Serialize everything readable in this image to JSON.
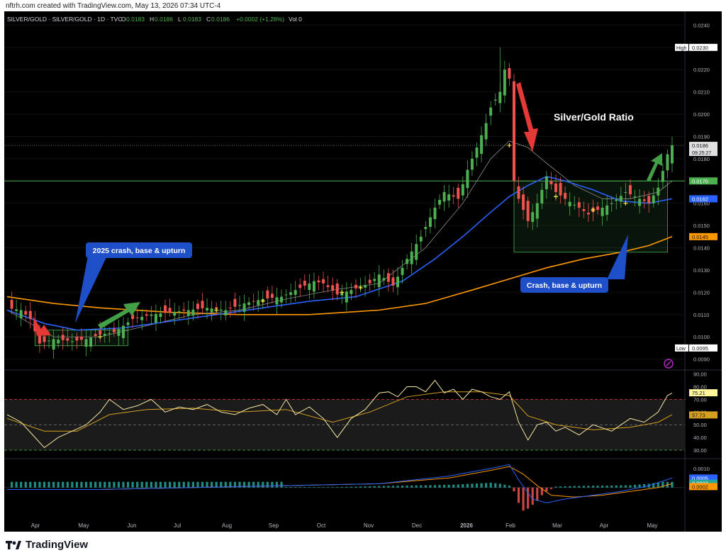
{
  "header": {
    "credit": "nftrh.com created with TradingView.com, May 13, 2026 07:34 UTC-4",
    "symbol": "SILVER/GOLD · SILVER/GOLD · 1D · TVC",
    "ohlc": [
      {
        "label": "O",
        "value": "0.0183"
      },
      {
        "label": "H",
        "value": "0.0186"
      },
      {
        "label": "L",
        "value": "0.0183"
      },
      {
        "label": "C",
        "value": "0.0186"
      }
    ],
    "change": "+0.0002 (+1.28%)",
    "volume": "Vol 0"
  },
  "footer": {
    "brand": "TradingView"
  },
  "colors": {
    "background": "#000000",
    "candle_up": "#4caf50",
    "candle_down": "#ef5350",
    "ma_blue": "#2962ff",
    "ma_orange": "#ff9800",
    "ma_thin": "#9e9e9e",
    "line_green": "#4caf50",
    "rsi": "#f5e6a0",
    "rsi_signal": "#d4a020",
    "arrow_green": "#43a047",
    "arrow_red": "#e53935",
    "callout": "#1e4fc8"
  },
  "chart_data": [
    {
      "type": "line",
      "name": "price",
      "title": "Silver/Gold Ratio",
      "x_labels": [
        "Apr",
        "May",
        "Jun",
        "Jul",
        "Aug",
        "Sep",
        "Oct",
        "Nov",
        "Dec",
        "2026",
        "Feb",
        "Mar",
        "Apr",
        "May"
      ],
      "y_ticks": [
        "0.0090",
        "0.0100",
        "0.0110",
        "0.0120",
        "0.0130",
        "0.0140",
        "0.0150",
        "0.0160",
        "0.0170",
        "0.0180",
        "0.0190",
        "0.0200",
        "0.0210",
        "0.0220",
        "0.0230",
        "0.0240"
      ],
      "ylim": [
        0.0087,
        0.0243
      ],
      "series": [
        {
          "name": "SILVER/GOLD",
          "points": [
            [
              0,
              0.0113
            ],
            [
              3,
              0.0112
            ],
            [
              5,
              0.0108
            ],
            [
              7,
              0.0097
            ],
            [
              10,
              0.0099
            ],
            [
              14,
              0.0098
            ],
            [
              17,
              0.0099
            ],
            [
              20,
              0.0101
            ],
            [
              23,
              0.0102
            ],
            [
              27,
              0.0108
            ],
            [
              31,
              0.011
            ],
            [
              35,
              0.0111
            ],
            [
              39,
              0.0112
            ],
            [
              43,
              0.0113
            ],
            [
              47,
              0.0112
            ],
            [
              51,
              0.0115
            ],
            [
              55,
              0.0117
            ],
            [
              59,
              0.0118
            ],
            [
              63,
              0.0122
            ],
            [
              66,
              0.0125
            ],
            [
              68,
              0.0124
            ],
            [
              71,
              0.0119
            ],
            [
              74,
              0.0121
            ],
            [
              78,
              0.0124
            ],
            [
              80,
              0.0128
            ],
            [
              83,
              0.0123
            ],
            [
              86,
              0.0135
            ],
            [
              89,
              0.0145
            ],
            [
              92,
              0.0158
            ],
            [
              94,
              0.0165
            ],
            [
              97,
              0.0162
            ],
            [
              99,
              0.0175
            ],
            [
              101,
              0.0185
            ],
            [
              103,
              0.0196
            ],
            [
              104,
              0.0203
            ],
            [
              106,
              0.021
            ],
            [
              107,
              0.022
            ],
            [
              108,
              0.0216
            ],
            [
              109,
              0.017
            ],
            [
              110,
              0.0162
            ],
            [
              112,
              0.0152
            ],
            [
              114,
              0.016
            ],
            [
              116,
              0.0172
            ],
            [
              118,
              0.0165
            ],
            [
              120,
              0.0162
            ],
            [
              123,
              0.0158
            ],
            [
              125,
              0.0155
            ],
            [
              128,
              0.0158
            ],
            [
              130,
              0.016
            ],
            [
              133,
              0.0165
            ],
            [
              136,
              0.0162
            ],
            [
              138,
              0.016
            ],
            [
              140,
              0.0167
            ],
            [
              142,
              0.0182
            ],
            [
              143,
              0.0186
            ]
          ]
        },
        {
          "name": "MA blue",
          "points": [
            [
              0,
              0.0112
            ],
            [
              8,
              0.0106
            ],
            [
              15,
              0.0103
            ],
            [
              25,
              0.0104
            ],
            [
              35,
              0.0107
            ],
            [
              45,
              0.011
            ],
            [
              55,
              0.0113
            ],
            [
              65,
              0.0116
            ],
            [
              75,
              0.0118
            ],
            [
              85,
              0.0125
            ],
            [
              92,
              0.0135
            ],
            [
              98,
              0.0145
            ],
            [
              104,
              0.0156
            ],
            [
              108,
              0.0163
            ],
            [
              112,
              0.0168
            ],
            [
              116,
              0.0172
            ],
            [
              120,
              0.017
            ],
            [
              126,
              0.0166
            ],
            [
              132,
              0.0161
            ],
            [
              138,
              0.016
            ],
            [
              143,
              0.0162
            ]
          ]
        },
        {
          "name": "MA orange",
          "points": [
            [
              0,
              0.0118
            ],
            [
              10,
              0.0115
            ],
            [
              20,
              0.0113
            ],
            [
              35,
              0.0111
            ],
            [
              50,
              0.011
            ],
            [
              65,
              0.011
            ],
            [
              80,
              0.0112
            ],
            [
              90,
              0.0115
            ],
            [
              100,
              0.0121
            ],
            [
              108,
              0.0126
            ],
            [
              116,
              0.0131
            ],
            [
              124,
              0.0135
            ],
            [
              132,
              0.0138
            ],
            [
              138,
              0.0141
            ],
            [
              143,
              0.0145
            ]
          ]
        },
        {
          "name": "MA thin",
          "points": [
            [
              0,
              0.0112
            ],
            [
              10,
              0.01
            ],
            [
              20,
              0.01
            ],
            [
              30,
              0.0105
            ],
            [
              40,
              0.011
            ],
            [
              50,
              0.0112
            ],
            [
              60,
              0.0117
            ],
            [
              70,
              0.0121
            ],
            [
              80,
              0.0124
            ],
            [
              90,
              0.014
            ],
            [
              98,
              0.016
            ],
            [
              104,
              0.018
            ],
            [
              108,
              0.0188
            ],
            [
              112,
              0.0185
            ],
            [
              116,
              0.0178
            ],
            [
              122,
              0.0168
            ],
            [
              128,
              0.0162
            ],
            [
              134,
              0.0162
            ],
            [
              140,
              0.0165
            ],
            [
              143,
              0.017
            ]
          ]
        }
      ],
      "horizontal_line": 0.017,
      "price_labels": [
        {
          "label": "High",
          "value": "0.0230"
        },
        {
          "label": "",
          "value": "0.0186",
          "sub": "09:25:27"
        },
        {
          "label": "",
          "value": "0.0170"
        },
        {
          "label": "",
          "value": "0.0162"
        },
        {
          "label": "",
          "value": "0.0145"
        },
        {
          "label": "Low",
          "value": "0.0095"
        }
      ],
      "annotations": [
        {
          "text": "2025 crash, base & upturn"
        },
        {
          "text": "Crash, base & upturn"
        }
      ]
    },
    {
      "type": "line",
      "name": "rsi",
      "y_ticks": [
        "30.00",
        "40.00",
        "50.00",
        "60.00",
        "70.00",
        "80.00",
        "90.00"
      ],
      "ylim": [
        25,
        92
      ],
      "last_labels": [
        "75.21",
        "57.73"
      ],
      "series": [
        {
          "name": "RSI",
          "points": [
            [
              0,
              58
            ],
            [
              3,
              52
            ],
            [
              6,
              40
            ],
            [
              8,
              32
            ],
            [
              11,
              40
            ],
            [
              14,
              45
            ],
            [
              17,
              50
            ],
            [
              20,
              60
            ],
            [
              22,
              70
            ],
            [
              25,
              62
            ],
            [
              28,
              65
            ],
            [
              31,
              70
            ],
            [
              34,
              60
            ],
            [
              37,
              64
            ],
            [
              40,
              62
            ],
            [
              43,
              66
            ],
            [
              46,
              60
            ],
            [
              49,
              58
            ],
            [
              52,
              63
            ],
            [
              55,
              66
            ],
            [
              58,
              58
            ],
            [
              60,
              70
            ],
            [
              62,
              58
            ],
            [
              65,
              64
            ],
            [
              68,
              55
            ],
            [
              71,
              40
            ],
            [
              74,
              55
            ],
            [
              77,
              62
            ],
            [
              80,
              75
            ],
            [
              82,
              76
            ],
            [
              84,
              72
            ],
            [
              86,
              80
            ],
            [
              88,
              80
            ],
            [
              90,
              76
            ],
            [
              92,
              85
            ],
            [
              94,
              75
            ],
            [
              96,
              78
            ],
            [
              98,
              70
            ],
            [
              100,
              78
            ],
            [
              102,
              76
            ],
            [
              104,
              72
            ],
            [
              106,
              70
            ],
            [
              108,
              76
            ],
            [
              110,
              52
            ],
            [
              112,
              38
            ],
            [
              114,
              50
            ],
            [
              116,
              52
            ],
            [
              118,
              45
            ],
            [
              120,
              48
            ],
            [
              123,
              42
            ],
            [
              126,
              50
            ],
            [
              130,
              45
            ],
            [
              134,
              55
            ],
            [
              137,
              52
            ],
            [
              140,
              60
            ],
            [
              142,
              73
            ],
            [
              143,
              75
            ]
          ]
        },
        {
          "name": "RSI signal",
          "points": [
            [
              0,
              55
            ],
            [
              8,
              45
            ],
            [
              15,
              45
            ],
            [
              22,
              58
            ],
            [
              30,
              62
            ],
            [
              40,
              63
            ],
            [
              50,
              60
            ],
            [
              60,
              62
            ],
            [
              70,
              52
            ],
            [
              78,
              60
            ],
            [
              86,
              72
            ],
            [
              94,
              76
            ],
            [
              102,
              76
            ],
            [
              108,
              73
            ],
            [
              112,
              57
            ],
            [
              118,
              50
            ],
            [
              126,
              46
            ],
            [
              134,
              48
            ],
            [
              140,
              52
            ],
            [
              143,
              58
            ]
          ]
        }
      ]
    },
    {
      "type": "bar",
      "name": "macd",
      "y_ticks": [
        "0.0010"
      ],
      "ylim": [
        -0.0016,
        0.0014
      ],
      "last_labels": [
        "0.0005",
        "0.0003",
        "0.0002"
      ],
      "histogram": [
        [
          60,
          3e-05
        ],
        [
          70,
          2e-05
        ],
        [
          80,
          8e-05
        ],
        [
          90,
          0.00012
        ],
        [
          96,
          0.00015
        ],
        [
          100,
          0.0002
        ],
        [
          104,
          0.00025
        ],
        [
          106,
          0.0002
        ],
        [
          108,
          0.0001
        ],
        [
          109,
          -0.0002
        ],
        [
          110,
          -0.0008
        ],
        [
          111,
          -0.0012
        ],
        [
          112,
          -0.0011
        ],
        [
          113,
          -0.0009
        ],
        [
          114,
          -0.0007
        ],
        [
          115,
          -0.0004
        ],
        [
          116,
          -0.0002
        ],
        [
          118,
          5e-05
        ],
        [
          122,
          8e-05
        ],
        [
          128,
          0.0001
        ],
        [
          134,
          0.00012
        ],
        [
          138,
          0.0002
        ],
        [
          141,
          0.0003
        ],
        [
          143,
          0.0003
        ]
      ],
      "series": [
        {
          "name": "MACD",
          "points": [
            [
              0,
              -0.0001
            ],
            [
              20,
              -0.0001
            ],
            [
              40,
              0.0
            ],
            [
              60,
              0.0001
            ],
            [
              80,
              0.0002
            ],
            [
              95,
              0.0006
            ],
            [
              104,
              0.001
            ],
            [
              108,
              0.0012
            ],
            [
              110,
              0.0004
            ],
            [
              113,
              -0.0006
            ],
            [
              116,
              -0.0008
            ],
            [
              120,
              -0.0006
            ],
            [
              126,
              -0.0004
            ],
            [
              132,
              -0.0002
            ],
            [
              138,
              0.0001
            ],
            [
              143,
              0.0005
            ]
          ]
        },
        {
          "name": "Signal",
          "points": [
            [
              0,
              -0.0001
            ],
            [
              20,
              -0.0001
            ],
            [
              40,
              0.0
            ],
            [
              60,
              0.0001
            ],
            [
              80,
              0.0002
            ],
            [
              95,
              0.0005
            ],
            [
              104,
              0.0009
            ],
            [
              108,
              0.0011
            ],
            [
              111,
              0.0007
            ],
            [
              114,
              0.0001
            ],
            [
              117,
              -0.0004
            ],
            [
              122,
              -0.0005
            ],
            [
              128,
              -0.0004
            ],
            [
              134,
              -0.0002
            ],
            [
              140,
              0.0
            ],
            [
              143,
              0.0002
            ]
          ]
        }
      ]
    }
  ]
}
